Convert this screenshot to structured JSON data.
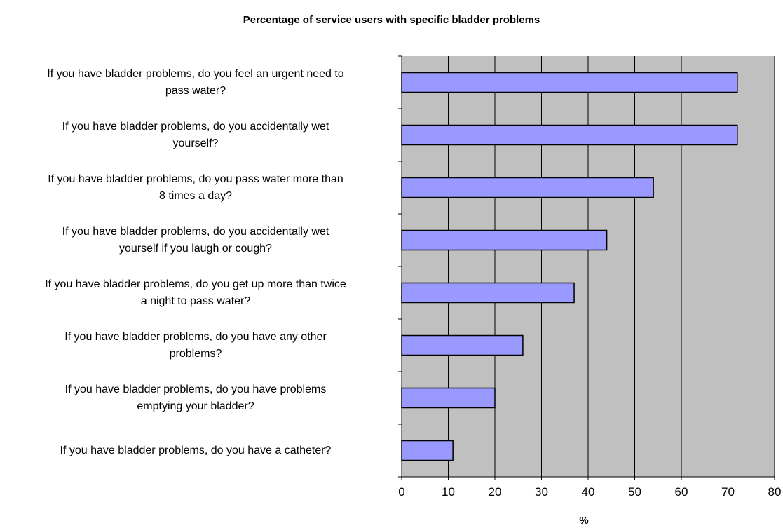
{
  "chart_data": {
    "type": "bar",
    "orientation": "horizontal",
    "title": "Percentage of service users with specific bladder problems",
    "xlabel": "%",
    "ylabel": "",
    "xlim": [
      0,
      80
    ],
    "x_ticks": [
      "0",
      "10",
      "20",
      "30",
      "40",
      "50",
      "60",
      "70",
      "80"
    ],
    "grid": true,
    "legend": "none",
    "plot_background": "#c0c0c0",
    "bar_color": "#9999ff",
    "categories": [
      [
        "If you have bladder problems, do you feel an urgent need to",
        "pass water?"
      ],
      [
        "If you have bladder problems, do you accidentally wet",
        "yourself?"
      ],
      [
        "If you have bladder problems, do you pass water more than",
        "8 times a day?"
      ],
      [
        "If you have bladder problems, do you accidentally wet",
        "yourself if you laugh or cough?"
      ],
      [
        "If you have bladder problems, do you get up more than twice",
        "a night to pass water?"
      ],
      [
        "If you have bladder problems, do you have any other",
        "problems?"
      ],
      [
        "If you have bladder problems, do you have problems",
        "emptying your bladder?"
      ],
      [
        "If you have bladder problems, do you have a catheter?"
      ]
    ],
    "values": [
      72,
      72,
      54,
      44,
      37,
      26,
      20,
      11
    ]
  }
}
